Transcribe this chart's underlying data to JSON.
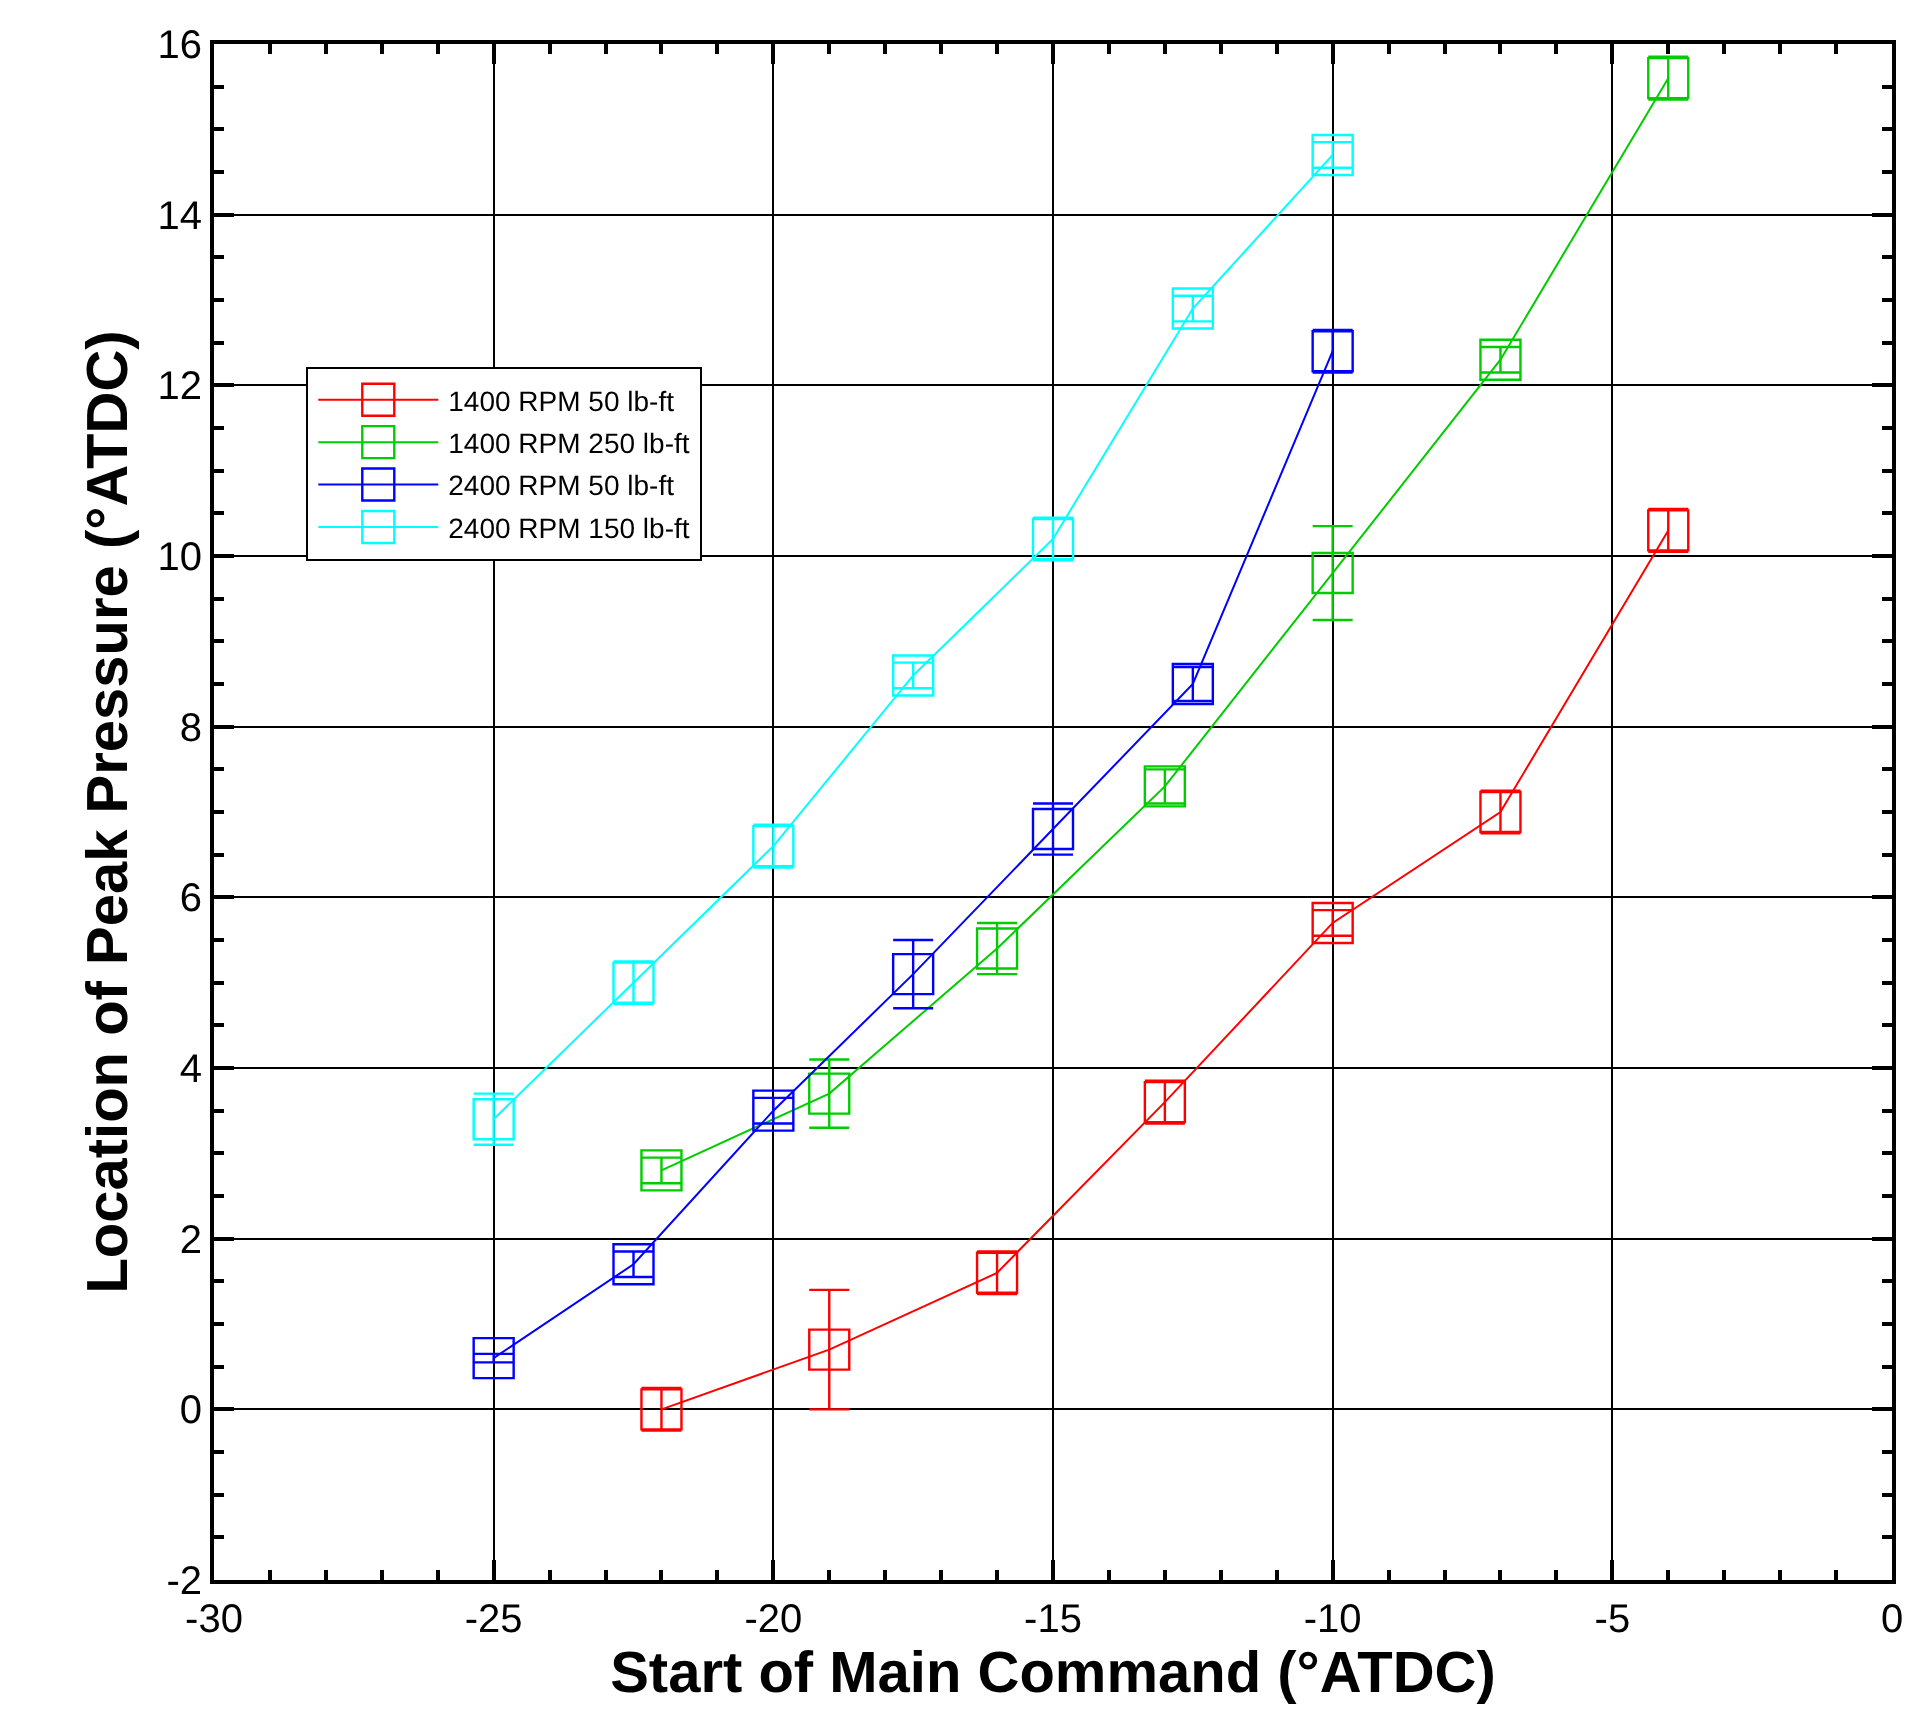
{
  "chart_data": {
    "type": "line",
    "xlabel": "Start of Main Command (°ATDC)",
    "ylabel": "Location of Peak Pressure (°ATDC)",
    "xlim": [
      -30,
      0
    ],
    "xticks": [
      -30,
      -25,
      -20,
      -15,
      -10,
      -5,
      0
    ],
    "ylim": [
      -2,
      16
    ],
    "yticks": [
      -2,
      0,
      2,
      4,
      6,
      8,
      10,
      12,
      14,
      16
    ],
    "grid": true,
    "legend": "top left",
    "marker": "square",
    "line_style": "solid",
    "series": [
      {
        "name": "1400 RPM 50 lb-ft",
        "color": "#ff0000",
        "x": [
          -22,
          -19,
          -16,
          -13,
          -10,
          -7,
          -4
        ],
        "values": [
          0,
          0.7,
          1.6,
          3.6,
          5.7,
          7.0,
          10.3
        ],
        "errors": [
          0.25,
          0.7,
          0.25,
          0.25,
          0.15,
          0.25,
          0.25
        ]
      },
      {
        "name": "1400 RPM 250 lb-ft",
        "color": "#00cc00",
        "x": [
          -22,
          -19,
          -16,
          -13,
          -10,
          -7,
          -4
        ],
        "values": [
          2.8,
          3.7,
          5.4,
          7.3,
          9.8,
          12.3,
          15.6
        ],
        "errors": [
          0.15,
          0.4,
          0.3,
          0.2,
          0.55,
          0.15,
          0.25
        ]
      },
      {
        "name": "2400 RPM 50 lb-ft",
        "color": "#0000ff",
        "x": [
          -25,
          -22.5,
          -20,
          -17.5,
          -15,
          -12.5,
          -10
        ],
        "values": [
          0.6,
          1.7,
          3.5,
          5.1,
          6.8,
          8.5,
          12.4
        ],
        "errors": [
          0.05,
          0.15,
          0.15,
          0.4,
          0.3,
          0.2,
          0.25
        ]
      },
      {
        "name": "2400 RPM 150 lb-ft",
        "color": "#00ffff",
        "x": [
          -25,
          -22.5,
          -20,
          -17.5,
          -15,
          -12.5,
          -10
        ],
        "values": [
          3.4,
          5.0,
          6.6,
          8.6,
          10.2,
          12.9,
          14.7
        ],
        "errors": [
          0.3,
          0.25,
          0.25,
          0.15,
          0.25,
          0.15,
          0.15
        ]
      }
    ]
  }
}
